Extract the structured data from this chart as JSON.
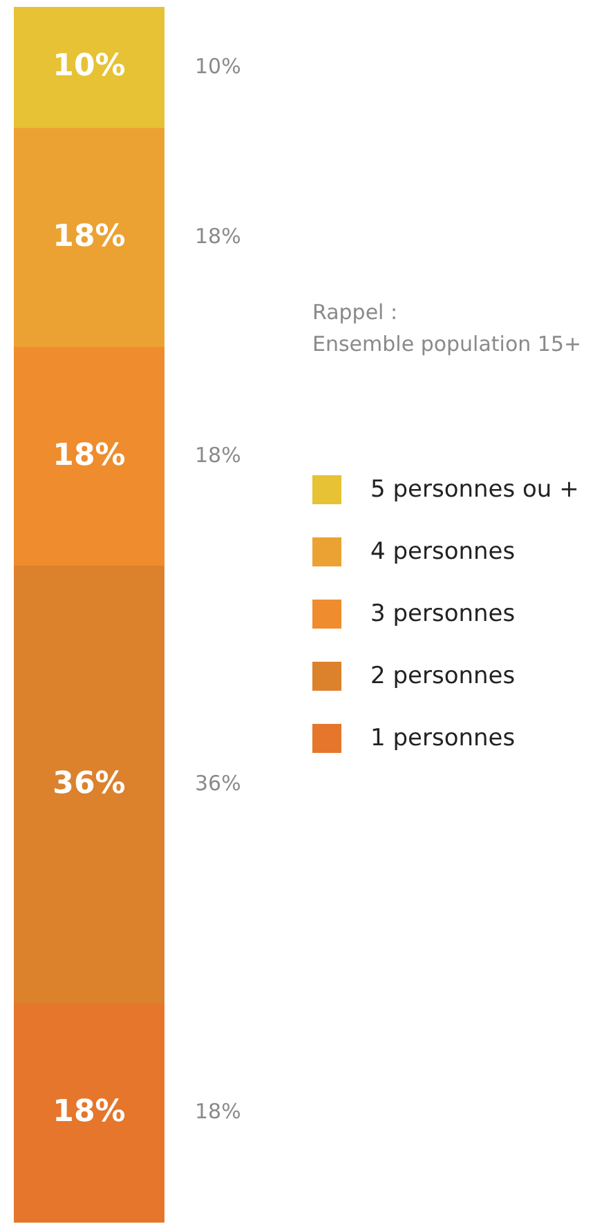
{
  "chart_data": {
    "type": "bar",
    "stacked": true,
    "categories": [
      null
    ],
    "legend": "right",
    "series": [
      {
        "name": "1 personnes",
        "color": "#e5762b",
        "values": [
          18
        ],
        "value_labels": [
          "18%"
        ]
      },
      {
        "name": "2 personnes",
        "color": "#dc812c",
        "values": [
          36
        ],
        "value_labels": [
          "36%"
        ]
      },
      {
        "name": "3 personnes",
        "color": "#ee8c2e",
        "values": [
          18
        ],
        "value_labels": [
          "18%"
        ]
      },
      {
        "name": "4 personnes",
        "color": "#eba233",
        "values": [
          18
        ],
        "value_labels": [
          "18%"
        ]
      },
      {
        "name": "5 personnes ou +",
        "color": "#e6c234",
        "values": [
          10
        ],
        "value_labels": [
          "10%"
        ]
      }
    ],
    "annotations": [
      "Rappel :\nEnsemble population 15+",
      "18%",
      "36%",
      "18%",
      "18%",
      "10%"
    ]
  }
}
